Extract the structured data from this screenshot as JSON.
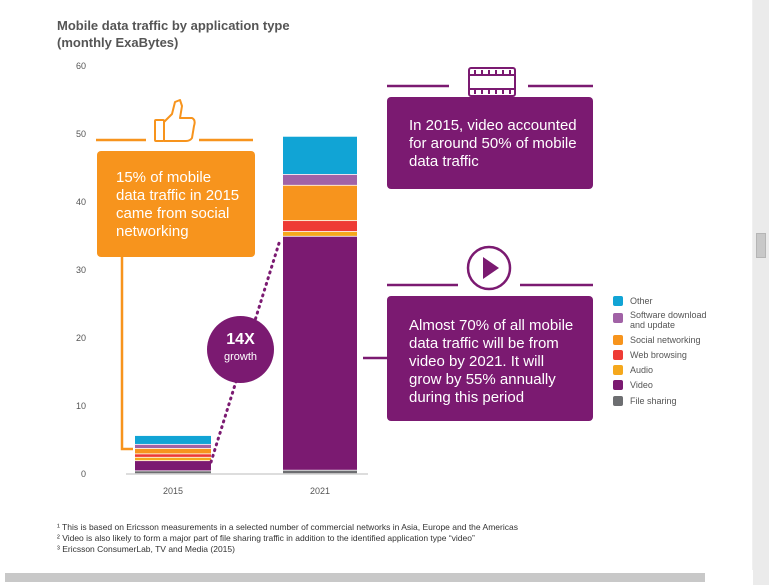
{
  "chart_data": {
    "type": "bar",
    "stacked": true,
    "title": "Mobile data traffic by application type",
    "subtitle": "(monthly ExaBytes)",
    "categories": [
      "2015",
      "2021"
    ],
    "ylim": [
      0,
      60
    ],
    "yticks": [
      0,
      10,
      20,
      30,
      40,
      50,
      60
    ],
    "grid": false,
    "legend_position": "right",
    "series": [
      {
        "name": "File sharing",
        "color": "#6d6e71",
        "values": [
          0.4,
          0.5
        ]
      },
      {
        "name": "Video",
        "color": "#7b1a71",
        "values": [
          1.5,
          34.4
        ]
      },
      {
        "name": "Audio",
        "color": "#f5a81c",
        "values": [
          0.5,
          0.7
        ]
      },
      {
        "name": "Web browsing",
        "color": "#ee3b35",
        "values": [
          0.5,
          1.6
        ]
      },
      {
        "name": "Social networking",
        "color": "#f7941d",
        "values": [
          0.8,
          5.2
        ]
      },
      {
        "name": "Software download and update",
        "color": "#a162a6",
        "values": [
          0.6,
          1.6
        ]
      },
      {
        "name": "Other",
        "color": "#11a4d5",
        "values": [
          1.3,
          5.6
        ]
      }
    ],
    "legend_order": [
      "Other",
      "Software download and update",
      "Social networking",
      "Web browsing",
      "Audio",
      "Video",
      "File sharing"
    ]
  },
  "callouts": {
    "social": "15% of mobile data traffic in 2015 came from social networking",
    "video_2015": "In 2015, video accounted for around 50% of mobile data traffic",
    "video_2021": "Almost 70% of all mobile data traffic will be from video by 2021. It will grow by 55% annually during this period"
  },
  "growth": {
    "value": "14X",
    "label": "growth"
  },
  "icons": {
    "social": "thumbs-up-icon",
    "video_2015": "film-strip-icon",
    "video_2021": "play-icon"
  },
  "footnotes": [
    "¹ This is based on Ericsson measurements in a selected number of commercial networks in Asia, Europe and the Americas",
    "² Video is also likely to form a major part of file sharing traffic in addition to the identified application type “video”",
    "³ Ericsson ConsumerLab, TV and Media (2015)"
  ]
}
